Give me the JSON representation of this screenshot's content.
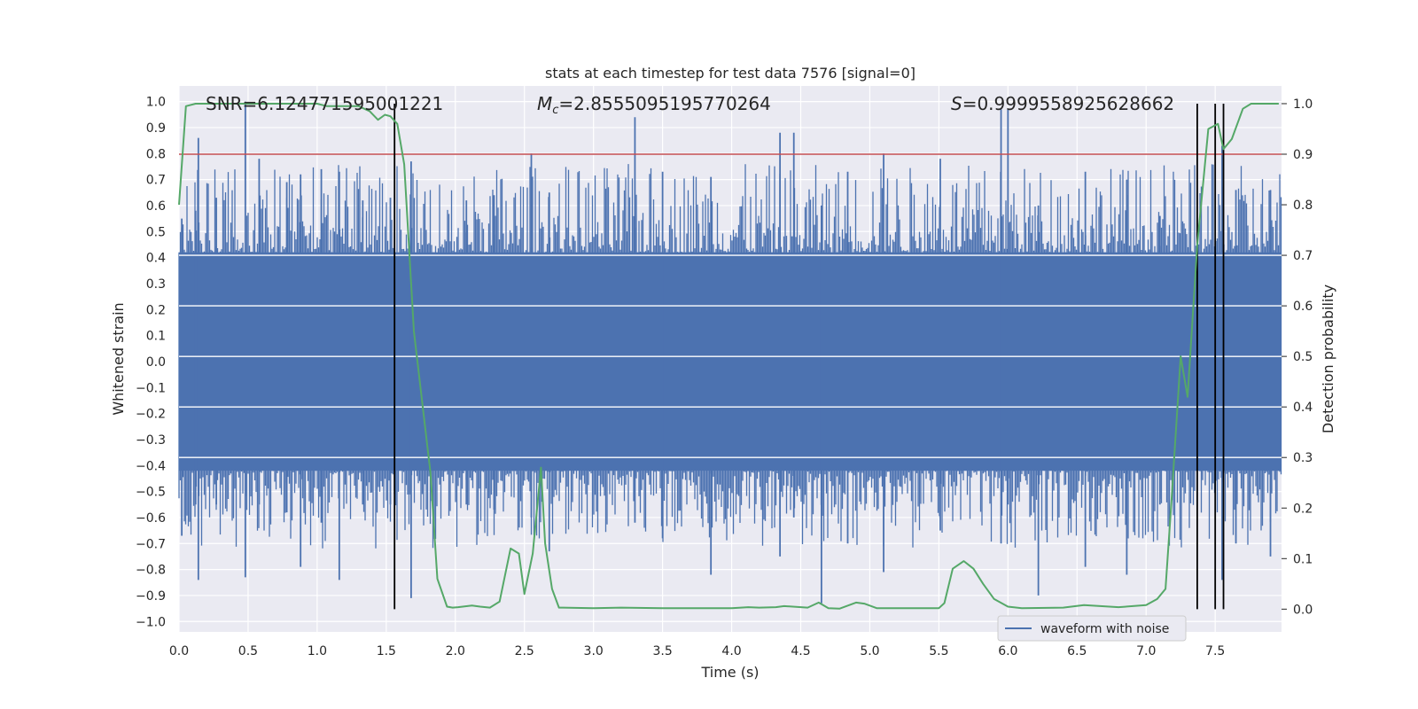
{
  "chart_data": {
    "type": "line",
    "title": "stats at each timestep for test data 7576 [signal=0]",
    "xlabel": "Time (s)",
    "ylabel": "Whitened strain",
    "y2label": "Detection probability",
    "xlim": [
      0.0,
      7.98
    ],
    "ylim": [
      -1.04,
      1.06
    ],
    "y2lim": [
      -0.045,
      1.035
    ],
    "xticks": [
      "0.0",
      "0.5",
      "1.0",
      "1.5",
      "2.0",
      "2.5",
      "3.0",
      "3.5",
      "4.0",
      "4.5",
      "5.0",
      "5.5",
      "6.0",
      "6.5",
      "7.0",
      "7.5"
    ],
    "yticks": [
      "1.0",
      "0.9",
      "0.8",
      "0.7",
      "0.6",
      "0.5",
      "0.4",
      "0.3",
      "0.2",
      "0.1",
      "0.0",
      "−0.1",
      "−0.2",
      "−0.3",
      "−0.4",
      "−0.5",
      "−0.6",
      "−0.7",
      "−0.8",
      "−0.9",
      "−1.0"
    ],
    "y2ticks": [
      "1.0",
      "0.9",
      "0.8",
      "0.7",
      "0.6",
      "0.5",
      "0.4",
      "0.3",
      "0.2",
      "0.1",
      "0.0"
    ],
    "threshold_line": {
      "y2": 0.9,
      "color": "#c44e52"
    },
    "vertical_lines": [
      1.56,
      7.37,
      7.5,
      7.56
    ],
    "annotations": {
      "snr": "SNR=6.124771595001221",
      "mc_prefix": "M",
      "mc_sub": "c",
      "mc_value": "=2.8555095195770264",
      "s_prefix": "S",
      "s_value": "=0.9999558925628662"
    },
    "legend": {
      "label": "waveform with noise",
      "location": "lower-right"
    },
    "waveform": {
      "name": "waveform with noise",
      "color": "#4c72b0",
      "band_upper": 0.42,
      "band_lower": -0.42,
      "spikes": [
        [
          0.02,
          0.55,
          -0.67
        ],
        [
          0.12,
          0.58,
          -0.55
        ],
        [
          0.14,
          0.86,
          -0.84
        ],
        [
          0.27,
          0.63,
          -0.55
        ],
        [
          0.48,
          1.0,
          -0.83
        ],
        [
          0.58,
          0.78,
          -0.55
        ],
        [
          0.78,
          0.69,
          -0.58
        ],
        [
          0.88,
          0.72,
          -0.79
        ],
        [
          1.03,
          0.74,
          -0.62
        ],
        [
          1.16,
          0.73,
          -0.84
        ],
        [
          1.33,
          0.62,
          -0.55
        ],
        [
          1.53,
          0.63,
          -0.55
        ],
        [
          1.68,
          0.77,
          -0.91
        ],
        [
          2.08,
          0.62,
          -0.55
        ],
        [
          2.28,
          0.64,
          -0.57
        ],
        [
          2.55,
          0.8,
          -0.6
        ],
        [
          2.68,
          0.65,
          -0.73
        ],
        [
          3.3,
          0.94,
          -0.62
        ],
        [
          3.5,
          0.73,
          -0.68
        ],
        [
          3.85,
          0.71,
          -0.82
        ],
        [
          4.35,
          0.88,
          -0.75
        ],
        [
          4.45,
          0.88,
          -0.6
        ],
        [
          4.65,
          0.6,
          -0.93
        ],
        [
          4.84,
          0.73,
          -0.7
        ],
        [
          5.1,
          0.8,
          -0.81
        ],
        [
          5.51,
          0.78,
          -0.65
        ],
        [
          5.95,
          0.97,
          -0.7
        ],
        [
          6.0,
          0.97,
          -0.55
        ],
        [
          6.22,
          0.6,
          -0.9
        ],
        [
          6.56,
          0.73,
          -0.79
        ],
        [
          6.86,
          0.7,
          -0.82
        ],
        [
          7.1,
          0.56,
          -0.55
        ],
        [
          7.55,
          0.83,
          -0.84
        ],
        [
          7.65,
          0.66,
          -0.7
        ],
        [
          7.9,
          0.66,
          -0.75
        ]
      ]
    },
    "probability": {
      "name": "Detection probability",
      "color": "#55a868",
      "x": [
        0.0,
        0.05,
        0.12,
        0.2,
        0.5,
        0.8,
        1.0,
        1.07,
        1.3,
        1.38,
        1.44,
        1.49,
        1.53,
        1.58,
        1.63,
        1.7,
        1.82,
        1.87,
        1.94,
        1.98,
        2.02,
        2.12,
        2.18,
        2.25,
        2.32,
        2.4,
        2.46,
        2.5,
        2.56,
        2.62,
        2.65,
        2.7,
        2.75,
        3.0,
        3.2,
        3.5,
        4.0,
        4.12,
        4.2,
        4.32,
        4.38,
        4.55,
        4.63,
        4.7,
        4.78,
        4.9,
        4.96,
        5.05,
        5.5,
        5.54,
        5.6,
        5.68,
        5.75,
        5.82,
        5.9,
        6.0,
        6.1,
        6.4,
        6.55,
        6.8,
        7.0,
        7.08,
        7.14,
        7.18,
        7.25,
        7.3,
        7.37,
        7.45,
        7.52,
        7.56,
        7.62,
        7.7,
        7.76,
        7.85,
        7.96
      ],
      "y": [
        0.8,
        0.995,
        1.0,
        1.0,
        1.0,
        1.0,
        1.0,
        0.995,
        0.995,
        0.985,
        0.968,
        0.978,
        0.975,
        0.96,
        0.88,
        0.55,
        0.27,
        0.06,
        0.005,
        0.003,
        0.004,
        0.007,
        0.005,
        0.003,
        0.015,
        0.12,
        0.11,
        0.03,
        0.11,
        0.28,
        0.13,
        0.04,
        0.003,
        0.002,
        0.003,
        0.002,
        0.002,
        0.004,
        0.003,
        0.004,
        0.006,
        0.003,
        0.013,
        0.002,
        0.001,
        0.013,
        0.011,
        0.002,
        0.002,
        0.012,
        0.08,
        0.095,
        0.08,
        0.05,
        0.02,
        0.005,
        0.002,
        0.003,
        0.008,
        0.004,
        0.008,
        0.02,
        0.04,
        0.2,
        0.5,
        0.42,
        0.72,
        0.95,
        0.96,
        0.91,
        0.93,
        0.99,
        1.0,
        1.0,
        1.0
      ]
    }
  }
}
